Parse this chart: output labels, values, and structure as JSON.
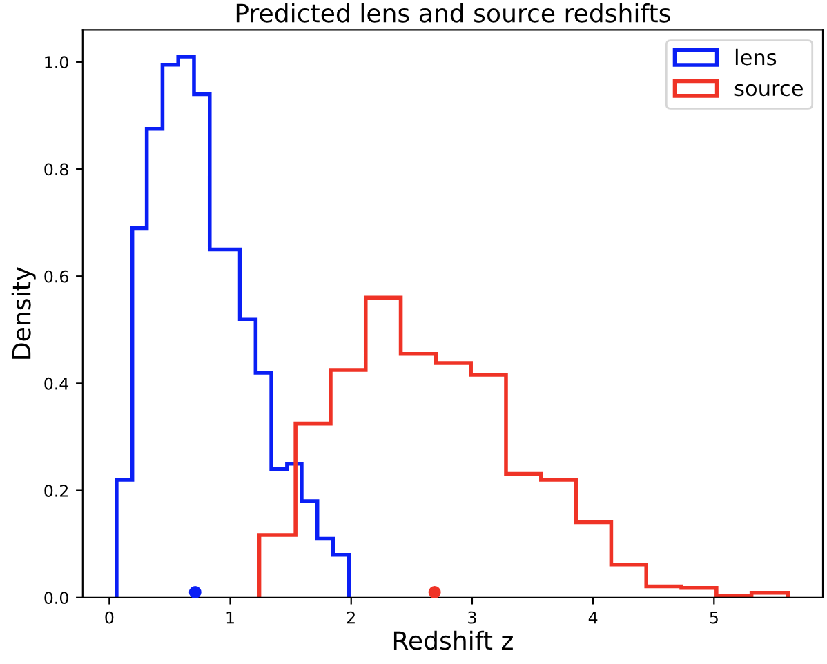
{
  "chart_data": {
    "type": "histogram",
    "title": "Predicted lens and source redshifts",
    "xlabel": "Redshift z",
    "ylabel": "Density",
    "series": [
      {
        "name": "lens",
        "color": "#0a1ff5",
        "bins": [
          0.06,
          0.19,
          0.31,
          0.44,
          0.57,
          0.7,
          0.83,
          0.95,
          1.08,
          1.21,
          1.34,
          1.47,
          1.59,
          1.72,
          1.85,
          1.98
        ],
        "values": [
          0.22,
          0.69,
          0.875,
          0.995,
          1.01,
          0.94,
          0.65,
          0.65,
          0.52,
          0.42,
          0.24,
          0.25,
          0.18,
          0.11,
          0.08
        ]
      },
      {
        "name": "source",
        "color": "#ef3326",
        "bins": [
          1.24,
          1.54,
          1.83,
          2.12,
          2.41,
          2.7,
          2.99,
          3.28,
          3.57,
          3.86,
          4.15,
          4.44,
          4.73,
          5.02,
          5.31,
          5.61
        ],
        "values": [
          0.117,
          0.325,
          0.425,
          0.56,
          0.455,
          0.438,
          0.416,
          0.231,
          0.22,
          0.141,
          0.062,
          0.021,
          0.018,
          0.003,
          0.009
        ]
      },
      {
        "type": "scatter",
        "color": "#0a1ff5",
        "x": [
          0.71
        ],
        "values": [
          0.01
        ]
      },
      {
        "type": "scatter",
        "color": "#ef3326",
        "x": [
          2.69
        ],
        "values": [
          0.01
        ]
      }
    ],
    "xlim": [
      -0.22,
      5.9
    ],
    "ylim": [
      0,
      1.06
    ],
    "xticks": [
      0,
      1,
      2,
      3,
      4,
      5
    ],
    "yticks": [
      {
        "value": 0,
        "label": "0.0"
      },
      {
        "value": 0.2,
        "label": "0.2"
      },
      {
        "value": 0.4,
        "label": "0.4"
      },
      {
        "value": 0.6,
        "label": "0.6"
      },
      {
        "value": 0.8,
        "label": "0.8"
      },
      {
        "value": 1.0,
        "label": "1.0"
      }
    ],
    "legend": "top right",
    "grid": false
  }
}
